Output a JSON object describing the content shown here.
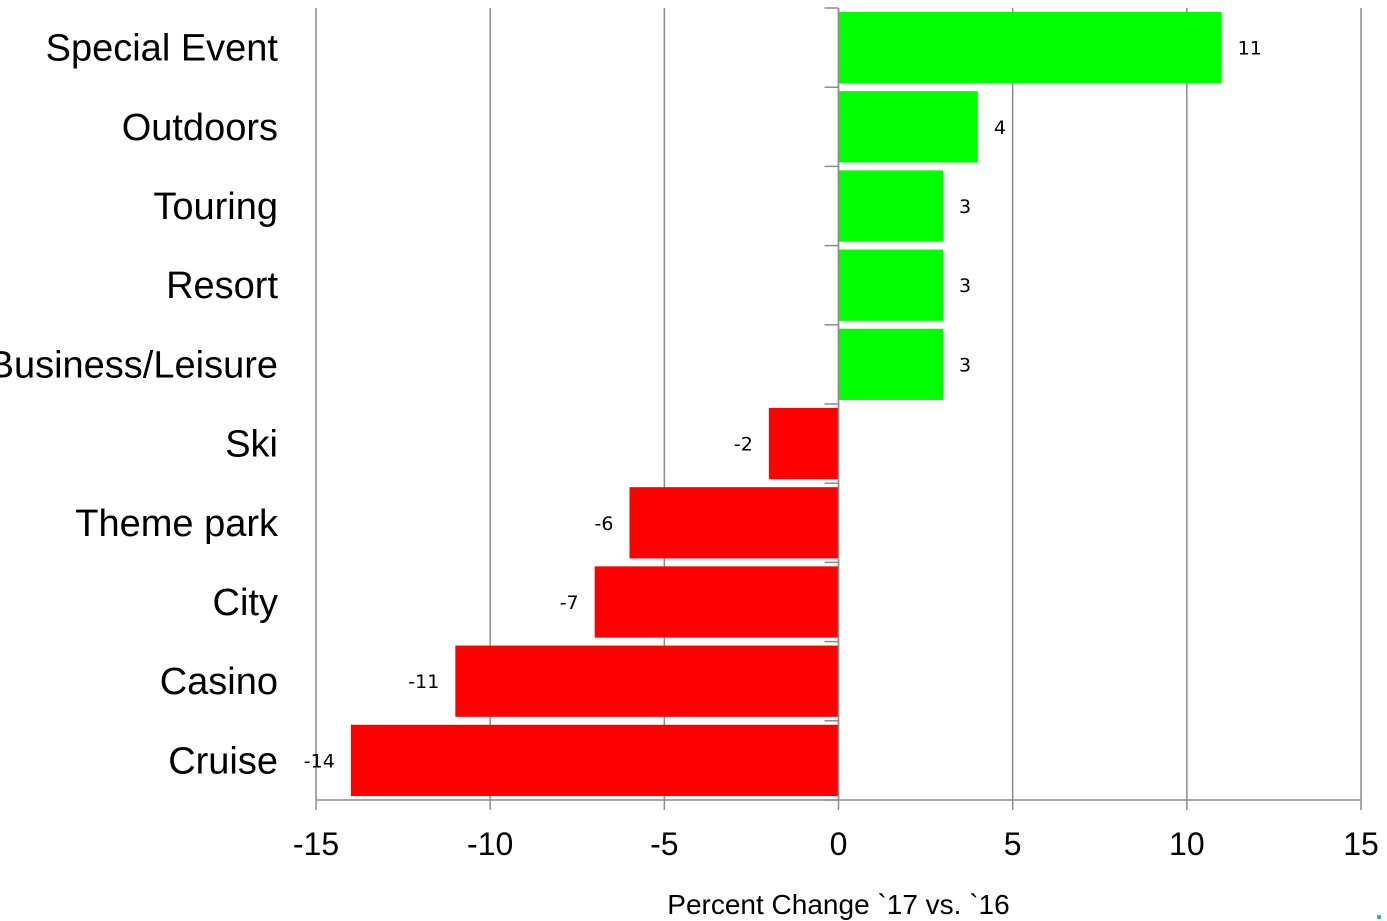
{
  "chart_data": {
    "type": "bar",
    "orientation": "horizontal",
    "categories": [
      "Special Event",
      "Outdoors",
      "Touring",
      "Resort",
      "Business/Leisure",
      "Ski",
      "Theme park",
      "City",
      "Casino",
      "Cruise"
    ],
    "values": [
      11,
      4,
      3,
      3,
      3,
      -2,
      -6,
      -7,
      -11,
      -14
    ],
    "data_labels": [
      "11",
      "4",
      "3",
      "3",
      "3",
      "-2",
      "-6",
      "-7",
      "-11",
      "-14"
    ],
    "xlabel": "Percent Change `17 vs. `16",
    "xlim": [
      -15,
      15
    ],
    "xticks": [
      -15,
      -10,
      -5,
      0,
      5,
      10,
      15
    ],
    "xtick_labels": [
      "-15",
      "-10",
      "-5",
      "0",
      "5",
      "10",
      "15"
    ],
    "grid": "vertical",
    "legend": "none",
    "colors": {
      "positive": "#00ff00",
      "negative": "#ff0000",
      "grid": "#8c8c8c",
      "text": "#000000"
    }
  }
}
